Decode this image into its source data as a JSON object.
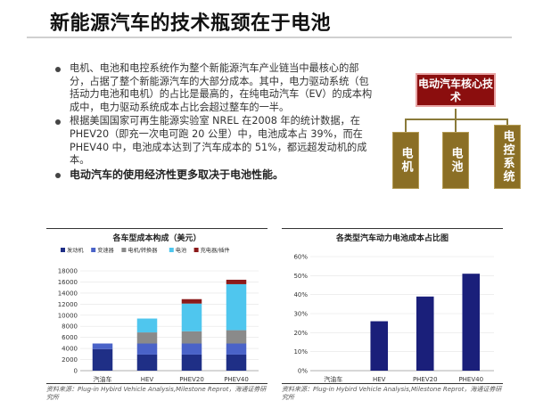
{
  "page": {
    "title": "新能源汽车的技术瓶颈在于电池"
  },
  "bullets": [
    "电机、电池和电控系统作为整个新能源汽车产业链当中最核心的部分，占据了整个新能源汽车的大部分成本。其中，电力驱动系统（包括动力电池和电机）的占比是最高的，在纯电动汽车（EV）的成本构成中，电力驱动系统成本占比会超过整车的一半。",
    "根据美国国家可再生能源实验室 NREL 在2008 年的统计数据，在 PHEV20（即充一次电可跑 20 公里）中，电池成本占 39%，而在 PHEV40 中，电池成本达到了汽车成本的 51%，都远超发动机的成本。",
    "电动汽车的使用经济性更多取决于电池性能。"
  ],
  "tree": {
    "root": "电动汽车核心技术",
    "children": [
      "电机",
      "电池",
      "电控系统"
    ],
    "root_color": "#8b0e0e",
    "child_color": "#8b6f25"
  },
  "chart_data": [
    {
      "type": "bar",
      "stacked": true,
      "title": "各车型成本构成（美元）",
      "categories": [
        "汽油车",
        "HEV",
        "PHEV20",
        "PHEV40"
      ],
      "yticks": [
        "0",
        "2000",
        "4000",
        "6000",
        "8000",
        "10000",
        "12000",
        "14000",
        "16000",
        "18000"
      ],
      "ylim": [
        0,
        18000
      ],
      "series": [
        {
          "name": "发动机",
          "color": "#1f2f86",
          "values": [
            3900,
            2900,
            2900,
            2900
          ]
        },
        {
          "name": "变速器",
          "color": "#4a63c8",
          "values": [
            1000,
            2000,
            2000,
            2000
          ]
        },
        {
          "name": "电机/转换器",
          "color": "#8a8a8a",
          "values": [
            0,
            2000,
            2200,
            2400
          ]
        },
        {
          "name": "电池",
          "color": "#4fc6ee",
          "values": [
            0,
            2500,
            5000,
            8300
          ]
        },
        {
          "name": "充电器/插件",
          "color": "#8b1a1a",
          "values": [
            0,
            0,
            800,
            800
          ]
        }
      ],
      "source": "资料来源：Plug-in Hybird Vehicle Analysis,Milestone Reprot，海通证券研究所"
    },
    {
      "type": "bar",
      "title": "各类型汽车动力电池成本占比图",
      "categories": [
        "汽油车",
        "HEV",
        "PHEV20",
        "PHEV40"
      ],
      "yticks": [
        "0%",
        "10%",
        "20%",
        "30%",
        "40%",
        "50%",
        "60%"
      ],
      "ylim": [
        0,
        60
      ],
      "values": [
        0,
        26,
        39,
        51
      ],
      "color": "#1a1f7a",
      "source": "资料来源：Plug-in Hybird Vehicle Analysis,Milestone Reprot，海通证券研究所"
    }
  ]
}
